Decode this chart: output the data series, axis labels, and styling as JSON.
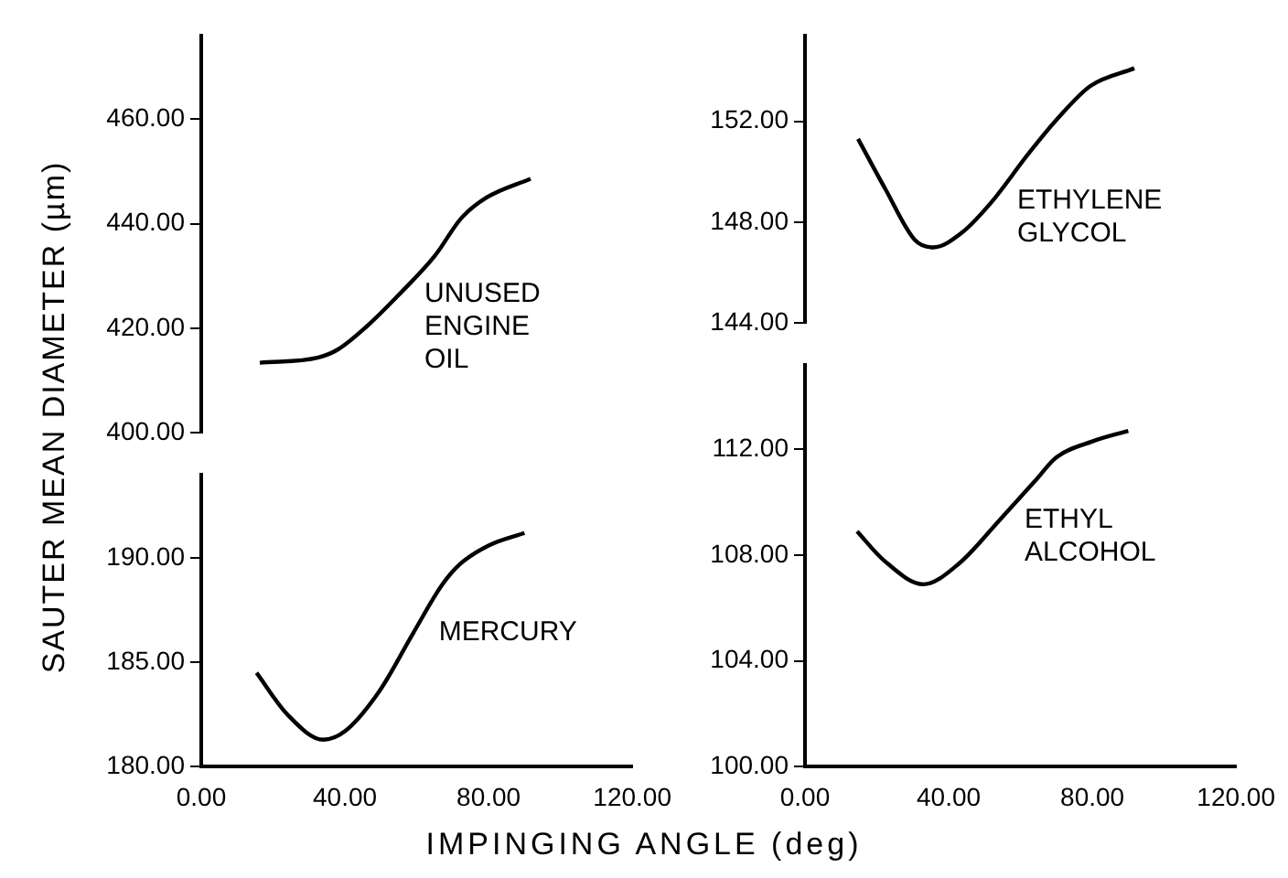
{
  "chart_data": [
    {
      "type": "line",
      "ylabel": "SAUTER MEAN DIAMETER (µm)",
      "xlim": [
        0,
        120
      ],
      "ylim": [
        400,
        476
      ],
      "yticks": [
        {
          "value": 400,
          "label": "400.00"
        },
        {
          "value": 420,
          "label": "420.00"
        },
        {
          "value": 440,
          "label": "440.00"
        },
        {
          "value": 460,
          "label": "460.00"
        }
      ],
      "tick_labels": "y",
      "grid": false,
      "legend": false,
      "series": [
        {
          "name": "UNUSED ENGINE OIL",
          "color": "#000000",
          "x": [
            16,
            32,
            37.5,
            45,
            54,
            64,
            71,
            78,
            90
          ],
          "values": [
            413.4,
            414.4,
            416,
            420.2,
            426.4,
            434,
            441,
            445,
            448.6
          ]
        }
      ]
    },
    {
      "type": "line",
      "xlim": [
        0,
        120
      ],
      "ylim": [
        144,
        155.4
      ],
      "yticks": [
        {
          "value": 144,
          "label": "144.00"
        },
        {
          "value": 148,
          "label": "148.00"
        },
        {
          "value": 152,
          "label": "152.00"
        }
      ],
      "tick_labels": "y",
      "grid": false,
      "legend": false,
      "series": [
        {
          "name": "ETHYLENE GLYCOL",
          "color": "#000000",
          "x": [
            14.5,
            22,
            30,
            35,
            43,
            51,
            61,
            69,
            78,
            90
          ],
          "values": [
            151.3,
            149.3,
            147.3,
            147,
            147.6,
            148.8,
            150.7,
            152.1,
            153.4,
            154.1
          ]
        }
      ]
    },
    {
      "type": "line",
      "xlabel": "IMPINGING ANGLE (deg)",
      "xlim": [
        0,
        120
      ],
      "ylim": [
        180,
        194
      ],
      "xticks": [
        {
          "value": 0,
          "label": "0.00"
        },
        {
          "value": 40,
          "label": "40.00"
        },
        {
          "value": 80,
          "label": "80.00"
        },
        {
          "value": 120,
          "label": "120.00"
        }
      ],
      "yticks": [
        {
          "value": 180,
          "label": "180.00"
        },
        {
          "value": 185,
          "label": "185.00"
        },
        {
          "value": 190,
          "label": "190.00"
        }
      ],
      "grid": false,
      "legend": false,
      "series": [
        {
          "name": "MERCURY",
          "color": "#000000",
          "x": [
            15.4,
            24,
            34,
            40,
            49.5,
            59,
            67,
            72,
            80,
            90
          ],
          "values": [
            184.5,
            182.5,
            181.3,
            181.7,
            183.6,
            186.4,
            188.7,
            189.7,
            190.6,
            191.2
          ]
        }
      ]
    },
    {
      "type": "line",
      "xlim": [
        0,
        120
      ],
      "ylim": [
        100,
        115.2
      ],
      "xticks": [
        {
          "value": 0,
          "label": "0.00"
        },
        {
          "value": 40,
          "label": "40.00"
        },
        {
          "value": 80,
          "label": "80.00"
        },
        {
          "value": 120,
          "label": "120.00"
        }
      ],
      "yticks": [
        {
          "value": 100,
          "label": "100.00"
        },
        {
          "value": 104,
          "label": "104.00"
        },
        {
          "value": 108,
          "label": "108.00"
        },
        {
          "value": 112,
          "label": "112.00"
        }
      ],
      "grid": false,
      "legend": false,
      "series": [
        {
          "name": "ETHYL ALCOHOL",
          "color": "#000000",
          "x": [
            14.5,
            22,
            33,
            43,
            54,
            64,
            70,
            80,
            90
          ],
          "values": [
            108.9,
            107.8,
            106.9,
            107.7,
            109.3,
            110.8,
            111.7,
            112.3,
            112.7
          ]
        }
      ]
    }
  ]
}
